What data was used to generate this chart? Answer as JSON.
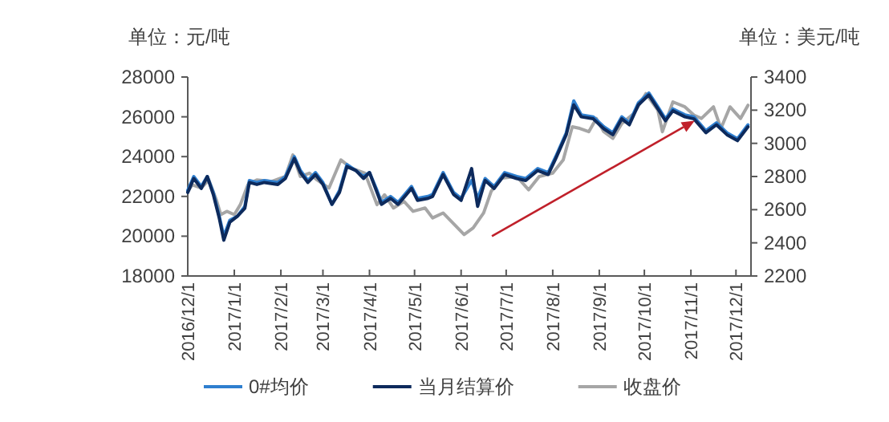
{
  "chart_data": {
    "type": "line",
    "ylabel": "单位：元/吨",
    "y2label": "单位：美元/吨",
    "legend": "bottom",
    "xlim": [
      "2016-12-01",
      "2017-12-11"
    ],
    "xticks": [
      {
        "value": "2016-12-01",
        "label": "2016/12/1"
      },
      {
        "value": "2017-01-01",
        "label": "2017/1/1"
      },
      {
        "value": "2017-02-01",
        "label": "2017/2/1"
      },
      {
        "value": "2017-03-01",
        "label": "2017/3/1"
      },
      {
        "value": "2017-04-01",
        "label": "2017/4/1"
      },
      {
        "value": "2017-05-01",
        "label": "2017/5/1"
      },
      {
        "value": "2017-06-01",
        "label": "2017/6/1"
      },
      {
        "value": "2017-07-01",
        "label": "2017/7/1"
      },
      {
        "value": "2017-08-01",
        "label": "2017/8/1"
      },
      {
        "value": "2017-09-01",
        "label": "2017/9/1"
      },
      {
        "value": "2017-10-01",
        "label": "2017/10/1"
      },
      {
        "value": "2017-11-01",
        "label": "2017/11/1"
      },
      {
        "value": "2017-12-01",
        "label": "2017/12/1"
      }
    ],
    "ylim": [
      18000,
      28000
    ],
    "yticks": [
      18000,
      20000,
      22000,
      24000,
      26000,
      28000
    ],
    "y2lim": [
      2200,
      3400
    ],
    "y2ticks": [
      2200,
      2400,
      2600,
      2800,
      3000,
      3200,
      3400
    ],
    "series": [
      {
        "name": "0#均价",
        "color": "#2f7fcf",
        "x": [
          "2016-12-01",
          "2016-12-05",
          "2016-12-10",
          "2016-12-14",
          "2016-12-18",
          "2016-12-22",
          "2016-12-25",
          "2016-12-29",
          "2017-01-03",
          "2017-01-08",
          "2017-01-11",
          "2017-01-16",
          "2017-01-21",
          "2017-01-30",
          "2017-02-04",
          "2017-02-10",
          "2017-02-14",
          "2017-02-19",
          "2017-02-24",
          "2017-03-01",
          "2017-03-07",
          "2017-03-12",
          "2017-03-17",
          "2017-03-23",
          "2017-03-28",
          "2017-04-01",
          "2017-04-06",
          "2017-04-09",
          "2017-04-15",
          "2017-04-20",
          "2017-04-29",
          "2017-05-03",
          "2017-05-10",
          "2017-05-13",
          "2017-05-20",
          "2017-05-27",
          "2017-06-01",
          "2017-06-08",
          "2017-06-12",
          "2017-06-17",
          "2017-06-23",
          "2017-06-30",
          "2017-07-08",
          "2017-07-14",
          "2017-07-22",
          "2017-07-29",
          "2017-08-03",
          "2017-08-10",
          "2017-08-15",
          "2017-08-20",
          "2017-08-28",
          "2017-09-04",
          "2017-09-10",
          "2017-09-16",
          "2017-09-21",
          "2017-09-27",
          "2017-10-04",
          "2017-10-10",
          "2017-10-15",
          "2017-10-20",
          "2017-10-28",
          "2017-11-03",
          "2017-11-11",
          "2017-11-18",
          "2017-11-25",
          "2017-12-02",
          "2017-12-09"
        ],
        "values": [
          22300,
          23000,
          22500,
          23000,
          22200,
          21000,
          20000,
          20800,
          21000,
          21500,
          22800,
          22700,
          22800,
          22700,
          23000,
          24000,
          23300,
          22800,
          23200,
          22700,
          21600,
          22300,
          23600,
          23300,
          23000,
          23200,
          22300,
          21700,
          22000,
          21700,
          22500,
          21900,
          22000,
          22100,
          23200,
          22200,
          21900,
          22800,
          21900,
          22900,
          22500,
          23200,
          23000,
          22900,
          23400,
          23200,
          24000,
          25200,
          26800,
          26100,
          26000,
          25500,
          25200,
          26000,
          25700,
          26700,
          27200,
          26500,
          25900,
          26400,
          26100,
          26000,
          25300,
          25700,
          25200,
          24900,
          25600
        ]
      },
      {
        "name": "当月结算价",
        "color": "#0d2a5c",
        "x": [
          "2016-12-01",
          "2016-12-05",
          "2016-12-10",
          "2016-12-14",
          "2016-12-18",
          "2016-12-22",
          "2016-12-25",
          "2016-12-29",
          "2017-01-03",
          "2017-01-08",
          "2017-01-11",
          "2017-01-16",
          "2017-01-21",
          "2017-01-30",
          "2017-02-04",
          "2017-02-10",
          "2017-02-14",
          "2017-02-19",
          "2017-02-24",
          "2017-03-01",
          "2017-03-07",
          "2017-03-12",
          "2017-03-17",
          "2017-03-23",
          "2017-03-28",
          "2017-04-01",
          "2017-04-06",
          "2017-04-09",
          "2017-04-15",
          "2017-04-20",
          "2017-04-29",
          "2017-05-03",
          "2017-05-10",
          "2017-05-13",
          "2017-05-20",
          "2017-05-27",
          "2017-06-01",
          "2017-06-08",
          "2017-06-12",
          "2017-06-17",
          "2017-06-23",
          "2017-06-30",
          "2017-07-08",
          "2017-07-14",
          "2017-07-22",
          "2017-07-29",
          "2017-08-03",
          "2017-08-10",
          "2017-08-15",
          "2017-08-20",
          "2017-08-28",
          "2017-09-04",
          "2017-09-10",
          "2017-09-16",
          "2017-09-21",
          "2017-09-27",
          "2017-10-04",
          "2017-10-10",
          "2017-10-15",
          "2017-10-20",
          "2017-10-28",
          "2017-11-03",
          "2017-11-11",
          "2017-11-18",
          "2017-11-25",
          "2017-12-02",
          "2017-12-09"
        ],
        "values": [
          22200,
          22900,
          22400,
          23000,
          22100,
          20900,
          19800,
          20700,
          21000,
          21400,
          22700,
          22600,
          22700,
          22600,
          22900,
          23900,
          23200,
          22700,
          23100,
          22600,
          21600,
          22200,
          23500,
          23300,
          22900,
          23200,
          22200,
          21600,
          21900,
          21600,
          22400,
          21800,
          21900,
          22000,
          23100,
          22100,
          21800,
          23400,
          21500,
          22800,
          22400,
          23100,
          22900,
          22800,
          23300,
          23100,
          23900,
          25100,
          26600,
          26000,
          25900,
          25400,
          25100,
          25900,
          25600,
          26600,
          27100,
          26400,
          25800,
          26300,
          26000,
          25900,
          25200,
          25600,
          25100,
          24800,
          25500
        ]
      },
      {
        "name": "收盘价",
        "color": "#a6a6a6",
        "axis": "y2",
        "x": [
          "2016-12-01",
          "2016-12-04",
          "2016-12-10",
          "2016-12-15",
          "2016-12-20",
          "2016-12-23",
          "2016-12-27",
          "2017-01-01",
          "2017-01-05",
          "2017-01-10",
          "2017-01-16",
          "2017-01-26",
          "2017-02-04",
          "2017-02-09",
          "2017-02-14",
          "2017-02-20",
          "2017-02-25",
          "2017-03-05",
          "2017-03-13",
          "2017-03-20",
          "2017-03-29",
          "2017-04-06",
          "2017-04-11",
          "2017-04-17",
          "2017-04-24",
          "2017-04-30",
          "2017-05-08",
          "2017-05-13",
          "2017-05-20",
          "2017-06-03",
          "2017-06-09",
          "2017-06-16",
          "2017-06-21",
          "2017-06-28",
          "2017-07-08",
          "2017-07-16",
          "2017-07-23",
          "2017-08-01",
          "2017-08-08",
          "2017-08-14",
          "2017-08-19",
          "2017-08-25",
          "2017-08-30",
          "2017-09-04",
          "2017-09-10",
          "2017-09-16",
          "2017-09-24",
          "2017-10-02",
          "2017-10-10",
          "2017-10-13",
          "2017-10-20",
          "2017-10-28",
          "2017-11-03",
          "2017-11-08",
          "2017-11-16",
          "2017-11-21",
          "2017-11-27",
          "2017-12-04",
          "2017-12-09"
        ],
        "values": [
          2710,
          2750,
          2730,
          2780,
          2660,
          2570,
          2590,
          2570,
          2630,
          2750,
          2780,
          2770,
          2800,
          2930,
          2800,
          2820,
          2780,
          2730,
          2900,
          2850,
          2820,
          2630,
          2690,
          2610,
          2650,
          2590,
          2610,
          2550,
          2580,
          2450,
          2490,
          2580,
          2710,
          2790,
          2800,
          2720,
          2800,
          2820,
          2900,
          3100,
          3090,
          3070,
          3150,
          3070,
          3030,
          3120,
          3180,
          3300,
          3200,
          3070,
          3250,
          3220,
          3170,
          3150,
          3220,
          3090,
          3220,
          3150,
          3230
        ]
      }
    ]
  }
}
